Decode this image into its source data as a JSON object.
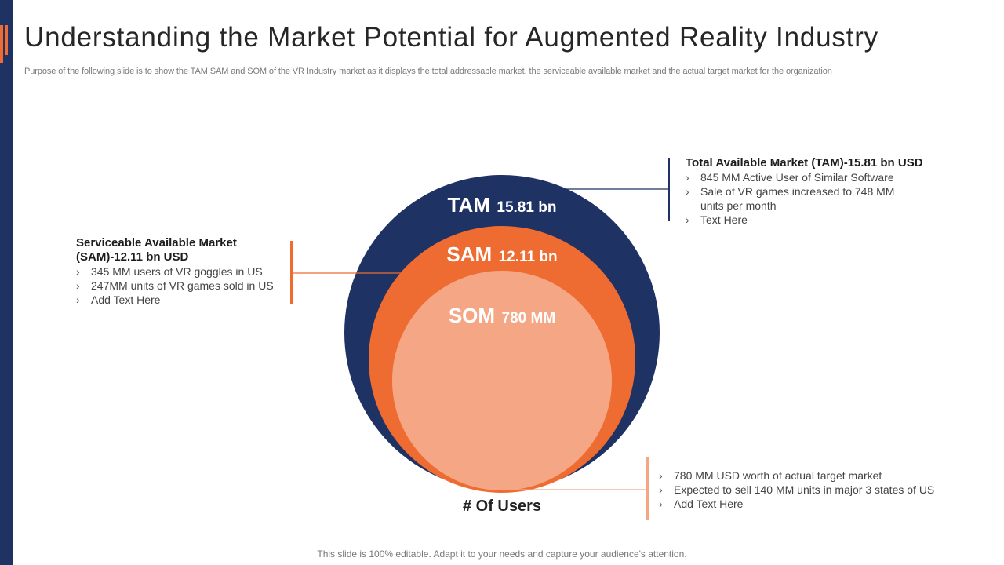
{
  "slide": {
    "title": "Understanding the Market Potential for Augmented Reality Industry",
    "subtitle": "Purpose of the following slide is to show the TAM  SAM  and SOM  of the VR Industry market as it displays the total addressable market, the serviceable available market and the actual target market for the organization",
    "footer": "This slide is 100% editable. Adapt it to your needs and capture your audience's attention."
  },
  "colors": {
    "navy": "#1f3264",
    "orange": "#ee6c31",
    "peach": "#f5a785",
    "tam_bar": "#1f3264",
    "sam_bar": "#ee6c31",
    "som_bar": "#f5a785"
  },
  "diagram": {
    "tam": {
      "label": "TAM",
      "value": "15.81 bn"
    },
    "sam": {
      "label": "SAM",
      "value": "12.11 bn"
    },
    "som": {
      "label": "SOM",
      "value": "780 MM"
    },
    "axis_label": "# Of Users"
  },
  "tam_block": {
    "heading": "Total Available Market (TAM)-15.81 bn USD",
    "items": [
      "845 MM  Active User of Similar Software",
      "Sale of VR games increased to 748 MM",
      "Text Here"
    ],
    "item2_continuation": "units per month"
  },
  "sam_block": {
    "heading_line1": "Serviceable Available Market",
    "heading_line2": "(SAM)-12.11 bn USD",
    "items": [
      "345 MM  users of VR goggles in US",
      "247MM  units of VR games sold in US",
      "Add Text Here"
    ]
  },
  "som_block": {
    "items": [
      "780 MM  USD worth of actual target market",
      "Expected to sell 140 MM  units in major 3 states of US",
      "Add Text Here"
    ]
  }
}
